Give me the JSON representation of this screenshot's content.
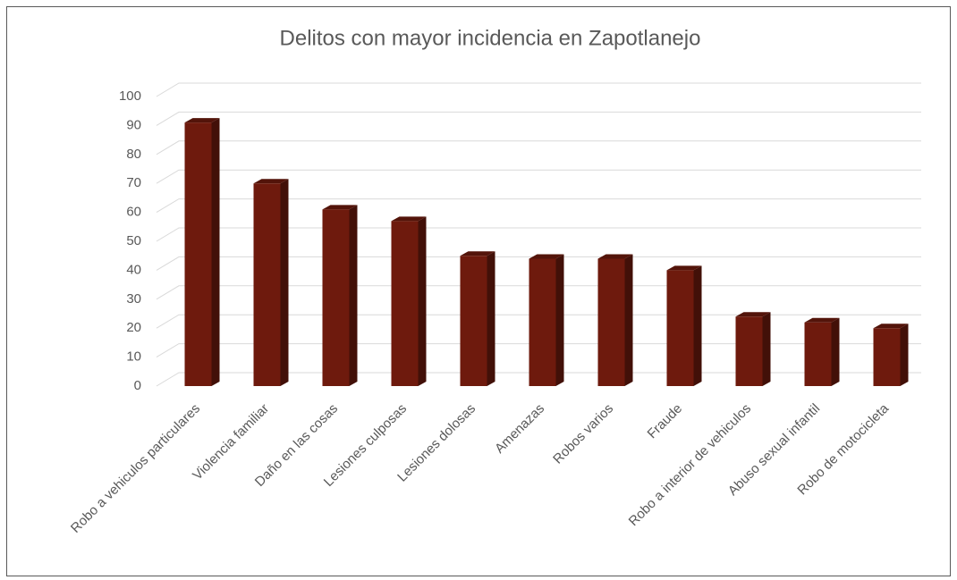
{
  "chart_data": {
    "type": "bar",
    "title": "Delitos con mayor incidencia en Zapotlanejo",
    "categories": [
      "Robo a vehiculos particulares",
      "Violencia familiar",
      "Daño en las cosas",
      "Lesiones culposas",
      "Lesiones dolosas",
      "Amenazas",
      "Robos varios",
      "Fraude",
      "Robo a interior de vehiculos",
      "Abuso sexual infantil",
      "Robo de motocicleta"
    ],
    "values": [
      91,
      70,
      61,
      57,
      45,
      44,
      44,
      40,
      24,
      22,
      20
    ],
    "color": "#6e1a0d",
    "ylim": [
      0,
      100
    ],
    "yticks": [
      0,
      10,
      20,
      30,
      40,
      50,
      60,
      70,
      80,
      90,
      100
    ],
    "grid": true
  }
}
